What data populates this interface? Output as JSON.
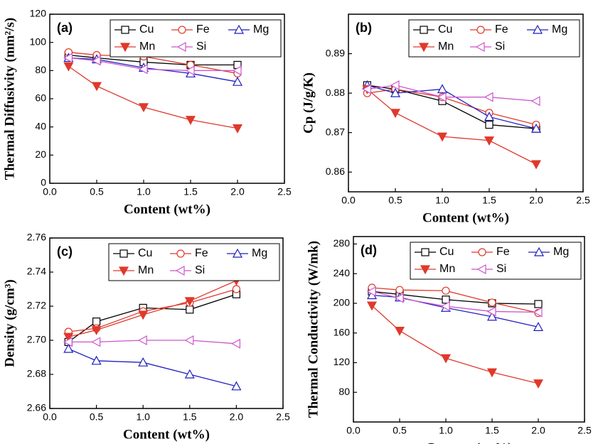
{
  "chart_data": [
    {
      "type": "line",
      "annotation": "(a)",
      "xlabel": "Content (wt%)",
      "ylabel": "Thermal Diffusivity (mm²/s)",
      "x": [
        0.2,
        0.5,
        1.0,
        1.5,
        2.0
      ],
      "xlim": [
        0,
        2.5
      ],
      "xticks": [
        {
          "value": 0,
          "label": "0.0"
        },
        0.5,
        {
          "value": 1,
          "label": "1.0"
        },
        1.5,
        {
          "value": 2,
          "label": "2.0"
        },
        2.5
      ],
      "ylim": [
        0,
        120
      ],
      "yticks": [
        0,
        20,
        40,
        60,
        80,
        100,
        120
      ],
      "legend": "upper right",
      "series": [
        {
          "name": "Cu",
          "color": "#000000",
          "marker": "square",
          "values": [
            91,
            89,
            86,
            84,
            84
          ]
        },
        {
          "name": "Fe",
          "color": "#e0392b",
          "marker": "circle",
          "values": [
            93,
            91,
            90,
            84,
            78
          ]
        },
        {
          "name": "Mg",
          "color": "#1f1fbf",
          "marker": "triangle-up",
          "values": [
            89,
            88,
            82,
            78,
            72
          ]
        },
        {
          "name": "Mn",
          "color": "#e0392b",
          "marker": "triangle-down-filled",
          "values": [
            83,
            69,
            54,
            45,
            39
          ]
        },
        {
          "name": "Si",
          "color": "#cc55cc",
          "marker": "triangle-left",
          "values": [
            89,
            87,
            81,
            80,
            80
          ]
        }
      ]
    },
    {
      "type": "line",
      "annotation": "(b)",
      "xlabel": "Content (wt%)",
      "ylabel": "Cp (J/g/K)",
      "x": [
        0.2,
        0.5,
        1.0,
        1.5,
        2.0
      ],
      "xlim": [
        0,
        2.5
      ],
      "xticks": [
        {
          "value": 0,
          "label": "0.0"
        },
        0.5,
        {
          "value": 1,
          "label": "1.0"
        },
        1.5,
        {
          "value": 2,
          "label": "2.0"
        },
        2.5
      ],
      "ylim": [
        0.855,
        0.9
      ],
      "yticks": [
        0.86,
        0.87,
        0.88,
        0.89
      ],
      "legend": "upper right",
      "series": [
        {
          "name": "Cu",
          "color": "#000000",
          "marker": "square",
          "values": [
            0.882,
            0.881,
            0.878,
            0.872,
            0.871
          ]
        },
        {
          "name": "Fe",
          "color": "#e0392b",
          "marker": "circle",
          "values": [
            0.88,
            0.881,
            0.879,
            0.875,
            0.872
          ]
        },
        {
          "name": "Mg",
          "color": "#1f1fbf",
          "marker": "triangle-up",
          "values": [
            0.882,
            0.88,
            0.881,
            0.874,
            0.871
          ]
        },
        {
          "name": "Mn",
          "color": "#e0392b",
          "marker": "triangle-down-filled",
          "values": [
            0.881,
            0.875,
            0.869,
            0.868,
            0.862
          ]
        },
        {
          "name": "Si",
          "color": "#cc55cc",
          "marker": "triangle-left",
          "values": [
            0.881,
            0.882,
            0.879,
            0.879,
            0.878
          ]
        }
      ]
    },
    {
      "type": "line",
      "annotation": "(c)",
      "xlabel": "Content (wt%)",
      "ylabel": "Density (g/cm³)",
      "x": [
        0.2,
        0.5,
        1.0,
        1.5,
        2.0
      ],
      "xlim": [
        0,
        2.5
      ],
      "xticks": [
        {
          "value": 0,
          "label": "0.0"
        },
        0.5,
        {
          "value": 1,
          "label": "1.0"
        },
        1.5,
        {
          "value": 2,
          "label": "2.0"
        },
        2.5
      ],
      "ylim": [
        2.66,
        2.76
      ],
      "yticks": [
        2.66,
        2.68,
        {
          "value": 2.7,
          "label": "2.70"
        },
        2.72,
        2.74,
        2.76
      ],
      "legend": "upper right",
      "series": [
        {
          "name": "Cu",
          "color": "#000000",
          "marker": "square",
          "values": [
            2.699,
            2.711,
            2.719,
            2.718,
            2.727
          ]
        },
        {
          "name": "Fe",
          "color": "#e0392b",
          "marker": "circle",
          "values": [
            2.705,
            2.707,
            2.717,
            2.722,
            2.73
          ]
        },
        {
          "name": "Mg",
          "color": "#1f1fbf",
          "marker": "triangle-up",
          "values": [
            2.695,
            2.688,
            2.687,
            2.68,
            2.673
          ]
        },
        {
          "name": "Mn",
          "color": "#e0392b",
          "marker": "triangle-down-filled",
          "values": [
            2.702,
            2.706,
            2.715,
            2.723,
            2.735
          ]
        },
        {
          "name": "Si",
          "color": "#cc55cc",
          "marker": "triangle-left",
          "values": [
            2.699,
            2.699,
            2.7,
            2.7,
            2.698
          ]
        }
      ]
    },
    {
      "type": "line",
      "annotation": "(d)",
      "xlabel": "Content (wt%)",
      "ylabel": "Thermal Conductivity (W/mk)",
      "x": [
        0.2,
        0.5,
        1.0,
        1.5,
        2.0
      ],
      "xlim": [
        0,
        2.5
      ],
      "xticks": [
        {
          "value": 0,
          "label": "0.0"
        },
        0.5,
        {
          "value": 1,
          "label": "1.0"
        },
        1.5,
        {
          "value": 2,
          "label": "2.0"
        },
        2.5
      ],
      "ylim": [
        40,
        290
      ],
      "yticks": [
        80,
        120,
        160,
        200,
        240,
        280
      ],
      "legend": "upper right",
      "series": [
        {
          "name": "Cu",
          "color": "#000000",
          "marker": "square",
          "values": [
            216,
            212,
            205,
            200,
            199
          ]
        },
        {
          "name": "Fe",
          "color": "#e0392b",
          "marker": "circle",
          "values": [
            221,
            218,
            217,
            201,
            187
          ]
        },
        {
          "name": "Mg",
          "color": "#1f1fbf",
          "marker": "triangle-up",
          "values": [
            211,
            208,
            194,
            182,
            168
          ]
        },
        {
          "name": "Mn",
          "color": "#e0392b",
          "marker": "triangle-down-filled",
          "values": [
            197,
            163,
            126,
            107,
            92
          ]
        },
        {
          "name": "Si",
          "color": "#cc55cc",
          "marker": "triangle-left",
          "values": [
            216,
            207,
            196,
            189,
            188
          ]
        }
      ]
    }
  ]
}
